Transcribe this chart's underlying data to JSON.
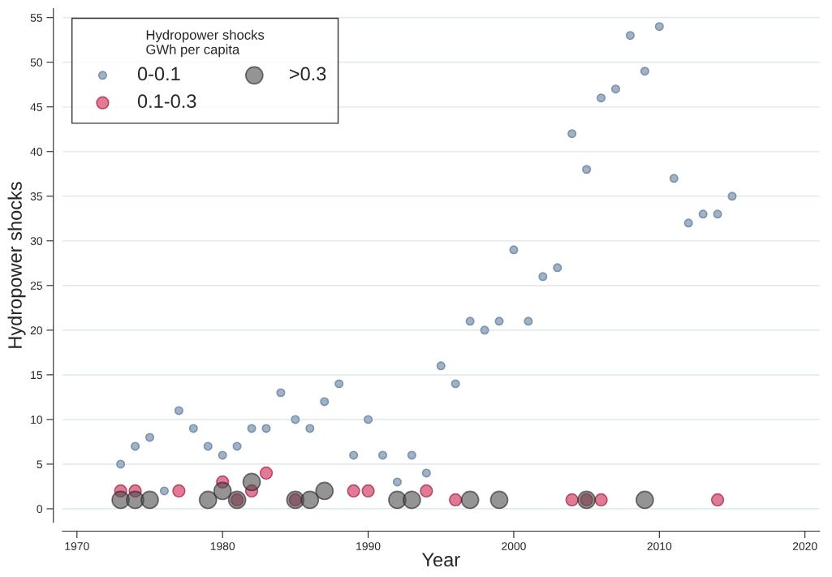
{
  "chart_data": {
    "type": "scatter",
    "xlabel": "Year",
    "ylabel": "Hydropower shocks",
    "legend_title": "Hydropower shocks\nGWh per capita",
    "legend": "top left",
    "grid": "y",
    "marker": "circle",
    "xlim": [
      1969,
      2021
    ],
    "xticks": [
      1970,
      1980,
      1990,
      2000,
      2010,
      2020
    ],
    "ylim": [
      -1.5,
      56
    ],
    "yticks": [
      0,
      5,
      10,
      15,
      20,
      25,
      30,
      35,
      40,
      45,
      50,
      55
    ],
    "series": [
      {
        "name": "0-0.1",
        "color": "#9fb3c8",
        "x": [
          1973,
          1974,
          1975,
          1976,
          1977,
          1978,
          1979,
          1980,
          1981,
          1982,
          1983,
          1984,
          1985,
          1986,
          1987,
          1988,
          1989,
          1990,
          1991,
          1992,
          1993,
          1994,
          1995,
          1996,
          1997,
          1998,
          1999,
          2000,
          2001,
          2002,
          2003,
          2004,
          2005,
          2006,
          2007,
          2008,
          2009,
          2010,
          2011,
          2012,
          2013,
          2014,
          2015
        ],
        "values": [
          5,
          7,
          8,
          2,
          11,
          9,
          7,
          6,
          7,
          9,
          9,
          13,
          10,
          9,
          12,
          14,
          6,
          10,
          6,
          3,
          6,
          4,
          16,
          14,
          21,
          20,
          21,
          29,
          21,
          26,
          27,
          42,
          38,
          46,
          47,
          53,
          49,
          54,
          37,
          32,
          33,
          33,
          35
        ]
      },
      {
        "name": "0.1-0.3",
        "color": "#e07a95",
        "x": [
          1973,
          1974,
          1977,
          1980,
          1981,
          1982,
          1983,
          1985,
          1989,
          1990,
          1994,
          1996,
          2004,
          2005,
          2006,
          2014
        ],
        "values": [
          2,
          2,
          2,
          3,
          1,
          2,
          4,
          1,
          2,
          2,
          2,
          1,
          1,
          1,
          1,
          1
        ]
      },
      {
        "name": ">0.3",
        "color": "#4d4d4d",
        "x": [
          1973,
          1974,
          1975,
          1979,
          1980,
          1981,
          1982,
          1985,
          1986,
          1987,
          1992,
          1993,
          1997,
          1999,
          2005,
          2009
        ],
        "values": [
          1,
          1,
          1,
          1,
          2,
          1,
          3,
          1,
          1,
          2,
          1,
          1,
          1,
          1,
          1,
          1
        ]
      }
    ]
  }
}
